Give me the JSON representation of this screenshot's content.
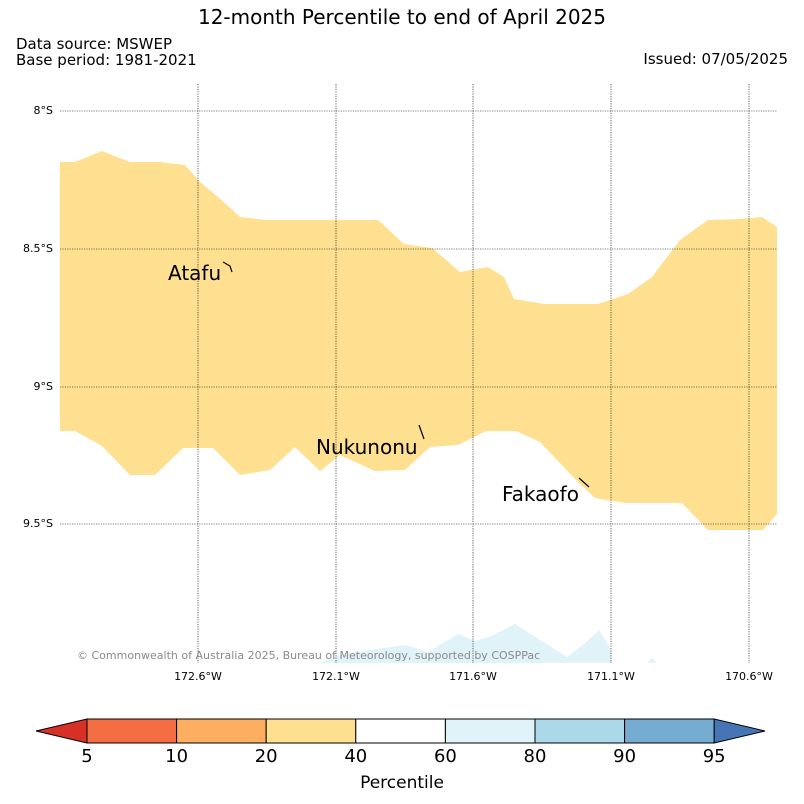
{
  "title": "12-month Percentile to end of April 2025",
  "data_source": "Data source: MSWEP",
  "base_period": "Base period: 1981-2021",
  "issued": "Issued: 07/05/2025",
  "latitude_labels": [
    "8°S",
    "8.5°S",
    "9°S",
    "9.5°S"
  ],
  "longitude_labels": [
    "172.6°W",
    "172.1°W",
    "171.6°W",
    "171.1°W",
    "170.6°W"
  ],
  "places": [
    "Atafu",
    "Nukunonu",
    "Fakaofo"
  ],
  "copyright": "© Commonwealth of Australia 2025, Bureau of Meteorology, supported by COSPPac",
  "colorbar": {
    "label": "Percentile",
    "ticks": [
      "5",
      "10",
      "20",
      "40",
      "60",
      "80",
      "90",
      "95"
    ],
    "colors": {
      "below_5": "#d73027",
      "5-10": "#f46d43",
      "10-20": "#fdae61",
      "20-40": "#fee090",
      "40-60": "#ffffff",
      "60-80": "#e0f3f8",
      "80-90": "#abd9e9",
      "90-95": "#74add1",
      "above_95": "#4575b4"
    }
  },
  "map_fill": {
    "main_band_class": "20-40",
    "bottom_edge_class": "60-80"
  }
}
